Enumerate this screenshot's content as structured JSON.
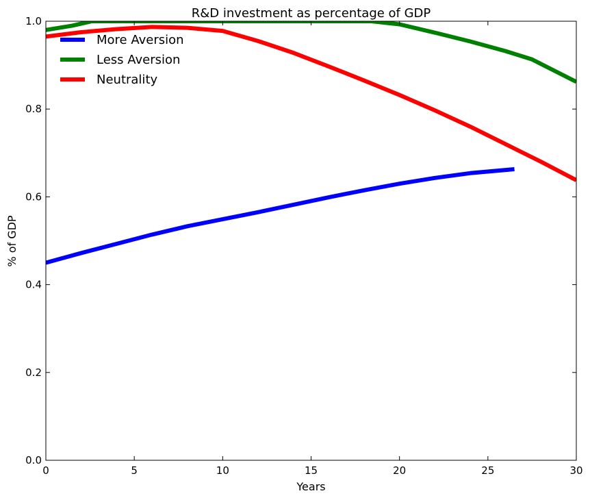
{
  "chart_data": {
    "type": "line",
    "title": "R&D investment as percentage of  GDP",
    "xlabel": "Years",
    "ylabel": "% of GDP",
    "xlim": [
      0,
      30
    ],
    "ylim": [
      0.0,
      1.0
    ],
    "xticks": [
      "0",
      "5",
      "10",
      "15",
      "20",
      "25",
      "30"
    ],
    "yticks": [
      "0.0",
      "0.2",
      "0.4",
      "0.6",
      "0.8",
      "1.0"
    ],
    "legend_position": "top-left",
    "grid": false,
    "series": [
      {
        "name": "More Aversion",
        "color": "#0000ff",
        "x": [
          0,
          2,
          4,
          6,
          8,
          10,
          12,
          14,
          16,
          18,
          20,
          22,
          24,
          26.5
        ],
        "y": [
          0.45,
          0.472,
          0.493,
          0.514,
          0.533,
          0.549,
          0.565,
          0.582,
          0.599,
          0.615,
          0.63,
          0.643,
          0.654,
          0.663
        ]
      },
      {
        "name": "Less Aversion",
        "color": "#008000",
        "x": [
          0,
          1.5,
          2.6,
          5,
          10,
          15,
          18.4,
          20,
          22,
          24,
          26,
          27.5,
          30
        ],
        "y": [
          0.98,
          0.99,
          1.0,
          1.0,
          1.0,
          1.0,
          1.0,
          0.993,
          0.974,
          0.954,
          0.932,
          0.913,
          0.862
        ]
      },
      {
        "name": "Neutrality",
        "color": "#ff0000",
        "x": [
          0,
          2,
          4,
          6,
          8,
          10,
          12,
          14,
          16,
          18,
          20,
          22,
          24,
          26,
          28,
          30
        ],
        "y": [
          0.965,
          0.975,
          0.982,
          0.987,
          0.985,
          0.978,
          0.955,
          0.928,
          0.897,
          0.865,
          0.832,
          0.797,
          0.76,
          0.72,
          0.68,
          0.638
        ]
      }
    ]
  }
}
